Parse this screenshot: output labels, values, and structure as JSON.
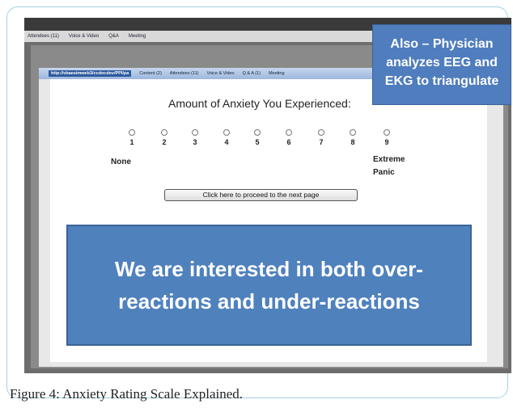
{
  "menu": [
    "Attendees (11)",
    "Voice & Video",
    "Q&A",
    "Meeting"
  ],
  "address": "http://vbaesimweb3/ccdocdev/PPI/pa",
  "toolbar": [
    "Content (2)",
    "Attendees (11)",
    "Voice & Video",
    "Q & A (1)",
    "Meeting"
  ],
  "callout": [
    "Also – Physician",
    "analyzes EEG and",
    "EKG to triangulate"
  ],
  "question": "Amount of Anxiety You Experienced:",
  "scale": [
    "1",
    "2",
    "3",
    "4",
    "5",
    "6",
    "7",
    "8",
    "9"
  ],
  "anchors": {
    "low": [
      "None"
    ],
    "high": [
      "Extreme",
      "Panic"
    ]
  },
  "button": "Click here to proceed to the next page",
  "banner": [
    "We are interested in both over-",
    "reactions and under-reactions"
  ],
  "caption": "Figure 4: Anxiety Rating Scale Explained."
}
